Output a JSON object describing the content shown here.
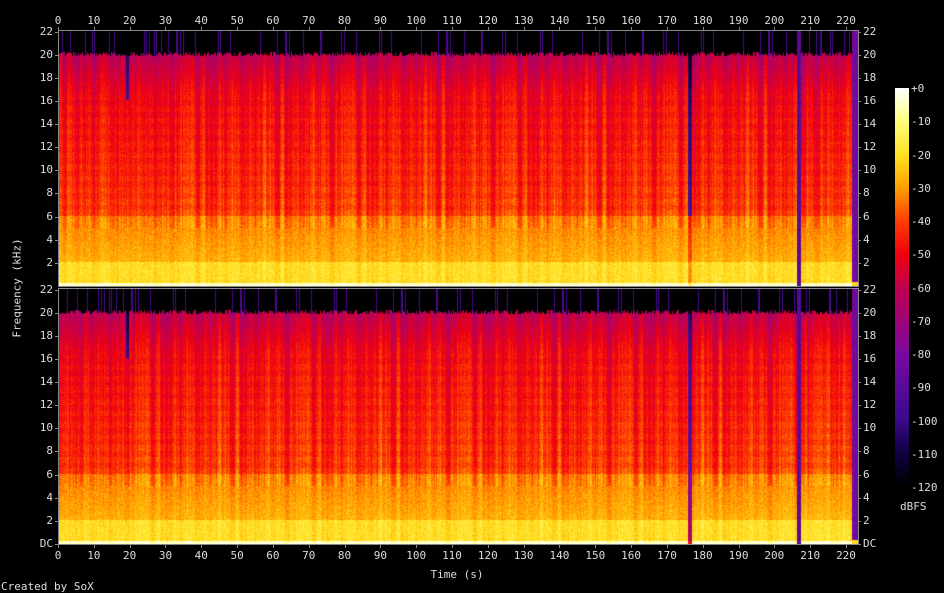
{
  "chart_data": {
    "type": "heatmap",
    "title": "",
    "xlabel": "Time (s)",
    "ylabel": "Frequency (kHz)",
    "xlim": [
      0,
      223
    ],
    "ylim": [
      0,
      22.05
    ],
    "channels": 2,
    "x_ticks": [
      "0",
      "10",
      "20",
      "30",
      "40",
      "50",
      "60",
      "70",
      "80",
      "90",
      "100",
      "110",
      "120",
      "130",
      "140",
      "150",
      "160",
      "170",
      "180",
      "190",
      "200",
      "210",
      "220"
    ],
    "y_ticks_top": [
      "2",
      "4",
      "6",
      "8",
      "10",
      "12",
      "14",
      "16",
      "18",
      "20",
      "22"
    ],
    "y_ticks_bottom": [
      "DC",
      "2",
      "4",
      "6",
      "8",
      "10",
      "12",
      "14",
      "16",
      "18",
      "20",
      "22"
    ],
    "colorbar": {
      "label": "dBFS",
      "range": [
        -120,
        0
      ],
      "ticks": [
        "+0",
        "-10",
        "-20",
        "-30",
        "-40",
        "-50",
        "-60",
        "-70",
        "-80",
        "-90",
        "-100",
        "-110",
        "-120"
      ]
    },
    "features": {
      "lowpass_cutoff_khz": 20,
      "dropouts_s": [
        19,
        176,
        206,
        222
      ]
    }
  },
  "credit": "Created by SoX"
}
